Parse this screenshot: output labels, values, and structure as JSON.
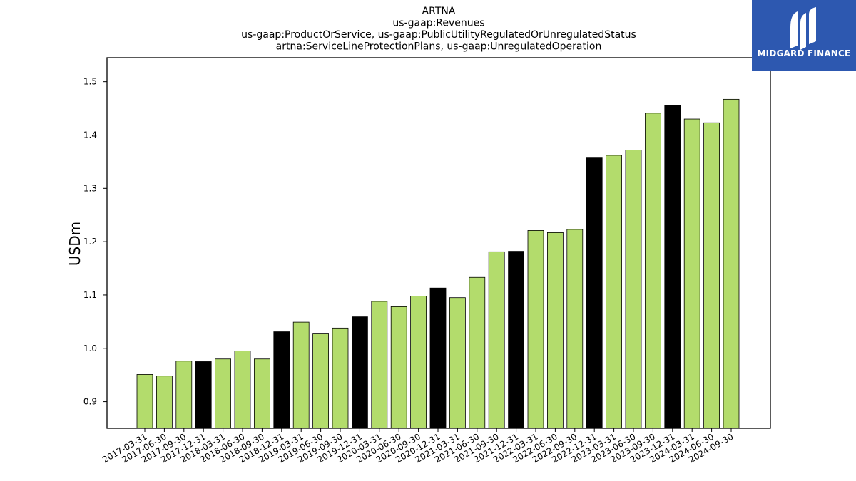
{
  "chart_data": {
    "type": "bar",
    "title": [
      "ARTNA",
      "us-gaap:Revenues",
      "us-gaap:ProductOrService, us-gaap:PublicUtilityRegulatedOrUnregulatedStatus",
      "artna:ServiceLineProtectionPlans, us-gaap:UnregulatedOperation"
    ],
    "ylabel": "USDm",
    "xlabel": "",
    "ylim": [
      0.85,
      1.545
    ],
    "yticks": [
      "0.9",
      "1.0",
      "1.1",
      "1.2",
      "1.3",
      "1.4",
      "1.5"
    ],
    "categories": [
      "2017-03-31",
      "2017-06-30",
      "2017-09-30",
      "2017-12-31",
      "2018-03-31",
      "2018-06-30",
      "2018-09-30",
      "2018-12-31",
      "2019-03-31",
      "2019-06-30",
      "2019-09-30",
      "2019-12-31",
      "2020-03-31",
      "2020-06-30",
      "2020-09-30",
      "2020-12-31",
      "2021-03-31",
      "2021-06-30",
      "2021-09-30",
      "2021-12-31",
      "2022-03-31",
      "2022-06-30",
      "2022-09-30",
      "2022-12-31",
      "2023-03-31",
      "2023-06-30",
      "2023-09-30",
      "2023-12-31",
      "2024-03-31",
      "2024-06-30",
      "2024-09-30"
    ],
    "values": [
      0.951,
      0.948,
      0.976,
      0.975,
      0.98,
      0.995,
      0.98,
      1.031,
      1.049,
      1.027,
      1.038,
      1.059,
      1.088,
      1.078,
      1.098,
      1.113,
      1.095,
      1.133,
      1.181,
      1.182,
      1.221,
      1.217,
      1.223,
      1.357,
      1.362,
      1.372,
      1.441,
      1.455,
      1.43,
      1.423,
      1.467
    ],
    "bar_colors": {
      "quarter": "#b3dc6c",
      "year_end": "#000000",
      "edge": "#000000"
    },
    "year_end_flags": [
      false,
      false,
      false,
      true,
      false,
      false,
      false,
      true,
      false,
      false,
      false,
      true,
      false,
      false,
      false,
      true,
      false,
      false,
      false,
      true,
      false,
      false,
      false,
      true,
      false,
      false,
      false,
      true,
      false,
      false,
      false
    ],
    "grid": false,
    "legend": "none"
  },
  "logo": {
    "text": "MIDGARD FINANCE",
    "background": "#2d58b0"
  }
}
